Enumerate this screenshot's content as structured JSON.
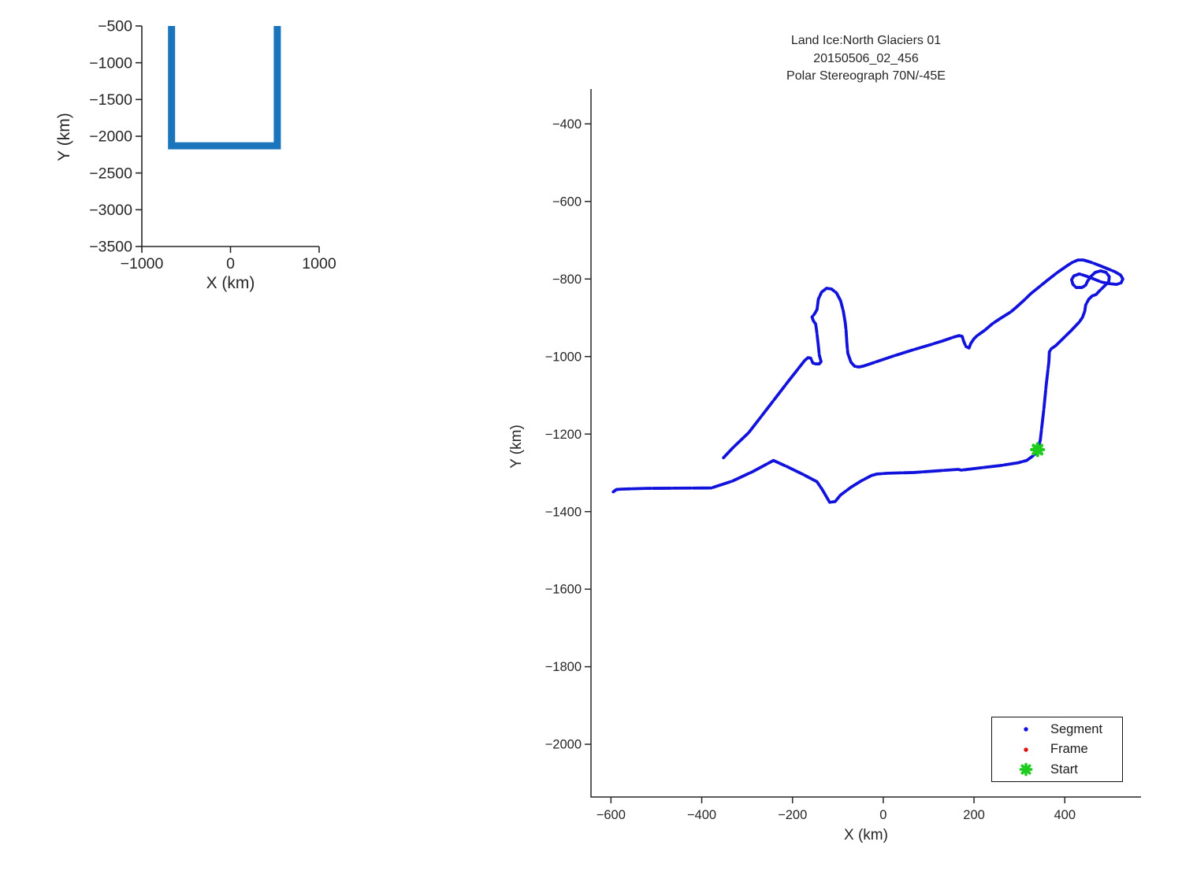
{
  "figure": {
    "background": "#ffffff",
    "kind": "flight-track-figure"
  },
  "colors": {
    "segment_blue": "#1212dd",
    "frame_red": "#dd1111",
    "start_green": "#1ecb1e",
    "overview_blue": "#1b75bc",
    "axis": "#262626",
    "text": "#262626",
    "background": "#ffffff"
  },
  "chart_data": [
    {
      "id": "overview",
      "type": "line",
      "title": "",
      "xlabel": "X (km)",
      "ylabel": "Y (km)",
      "xlim": [
        -1000,
        1000
      ],
      "ylim": [
        -3500,
        -500
      ],
      "xticks": [
        -1000,
        0,
        1000
      ],
      "yticks": [
        -500,
        -1000,
        -1500,
        -2000,
        -2500,
        -3000,
        -3500
      ],
      "grid": false,
      "legend": null,
      "series": [
        {
          "name": "full-mission-track",
          "color": "overview_blue",
          "points": [
            [
              -665,
              -440
            ],
            [
              -665,
              -2130
            ],
            [
              528,
              -2130
            ],
            [
              528,
              -440
            ]
          ]
        }
      ]
    },
    {
      "id": "track",
      "type": "line",
      "title_lines": [
        "Land Ice:North Glaciers 01",
        "20150506_02_456",
        "Polar Stereograph 70N/-45E"
      ],
      "xlabel": "X (km)",
      "ylabel": "Y (km)",
      "xlim": [
        -644,
        568
      ],
      "ylim": [
        -2136,
        -310
      ],
      "xticks": [
        -600,
        -400,
        -200,
        0,
        200,
        400
      ],
      "yticks": [
        -400,
        -600,
        -800,
        -1000,
        -1200,
        -1400,
        -1600,
        -1800,
        -2000
      ],
      "grid": false,
      "legend": {
        "position": "lower-right",
        "items": [
          {
            "label": "Segment",
            "marker": "dot",
            "color": "segment_blue"
          },
          {
            "label": "Frame",
            "marker": "dot",
            "color": "frame_red"
          },
          {
            "label": "Start",
            "marker": "asterisk",
            "color": "start_green"
          }
        ]
      },
      "start_point": [
        340,
        -1240
      ],
      "series": [
        {
          "name": "segment-track",
          "color": "segment_blue",
          "points": [
            [
              -595,
              -1349
            ],
            [
              -588,
              -1343
            ],
            [
              -578,
              -1342
            ],
            [
              -523,
              -1340
            ],
            [
              -379,
              -1339
            ],
            [
              -332,
              -1321
            ],
            [
              -288,
              -1297
            ],
            [
              -242,
              -1268
            ],
            [
              -210,
              -1285
            ],
            [
              -175,
              -1305
            ],
            [
              -146,
              -1323
            ],
            [
              -135,
              -1342
            ],
            [
              -123,
              -1366
            ],
            [
              -118,
              -1376
            ],
            [
              -106,
              -1374
            ],
            [
              -94,
              -1357
            ],
            [
              -71,
              -1337
            ],
            [
              -49,
              -1321
            ],
            [
              -26,
              -1307
            ],
            [
              -14,
              -1303
            ],
            [
              10,
              -1301
            ],
            [
              68,
              -1299
            ],
            [
              165,
              -1291
            ],
            [
              172,
              -1293
            ],
            [
              215,
              -1287
            ],
            [
              259,
              -1281
            ],
            [
              297,
              -1274
            ],
            [
              316,
              -1268
            ],
            [
              328,
              -1258
            ],
            [
              337,
              -1248
            ],
            [
              340,
              -1240
            ],
            [
              346,
              -1216
            ],
            [
              354,
              -1134
            ],
            [
              359,
              -1074
            ],
            [
              365,
              -1013
            ],
            [
              366,
              -988
            ],
            [
              370,
              -980
            ],
            [
              380,
              -972
            ],
            [
              401,
              -948
            ],
            [
              415,
              -932
            ],
            [
              432,
              -911
            ],
            [
              439,
              -899
            ],
            [
              444,
              -883
            ],
            [
              446,
              -867
            ],
            [
              453,
              -852
            ],
            [
              460,
              -844
            ],
            [
              469,
              -840
            ],
            [
              477,
              -830
            ],
            [
              484,
              -822
            ],
            [
              491,
              -814
            ],
            [
              497,
              -806
            ],
            [
              498,
              -794
            ],
            [
              491,
              -783
            ],
            [
              479,
              -779
            ],
            [
              467,
              -783
            ],
            [
              457,
              -794
            ],
            [
              450,
              -806
            ],
            [
              446,
              -816
            ],
            [
              438,
              -822
            ],
            [
              425,
              -822
            ],
            [
              418,
              -814
            ],
            [
              415,
              -802
            ],
            [
              420,
              -792
            ],
            [
              432,
              -787
            ],
            [
              446,
              -792
            ],
            [
              464,
              -800
            ],
            [
              481,
              -808
            ],
            [
              498,
              -812
            ],
            [
              514,
              -814
            ],
            [
              524,
              -810
            ],
            [
              528,
              -800
            ],
            [
              523,
              -790
            ],
            [
              510,
              -781
            ],
            [
              493,
              -773
            ],
            [
              476,
              -765
            ],
            [
              458,
              -757
            ],
            [
              441,
              -751
            ],
            [
              429,
              -751
            ],
            [
              417,
              -757
            ],
            [
              406,
              -765
            ],
            [
              384,
              -783
            ],
            [
              363,
              -802
            ],
            [
              342,
              -822
            ],
            [
              325,
              -838
            ],
            [
              311,
              -854
            ],
            [
              293,
              -873
            ],
            [
              281,
              -885
            ],
            [
              259,
              -901
            ],
            [
              241,
              -915
            ],
            [
              224,
              -932
            ],
            [
              207,
              -946
            ],
            [
              200,
              -954
            ],
            [
              193,
              -966
            ],
            [
              189,
              -978
            ],
            [
              182,
              -974
            ],
            [
              177,
              -960
            ],
            [
              174,
              -948
            ],
            [
              167,
              -946
            ],
            [
              155,
              -950
            ],
            [
              130,
              -960
            ],
            [
              108,
              -968
            ],
            [
              68,
              -982
            ],
            [
              24,
              -998
            ],
            [
              -19,
              -1015
            ],
            [
              -45,
              -1025
            ],
            [
              -54,
              -1027
            ],
            [
              -63,
              -1025
            ],
            [
              -71,
              -1015
            ],
            [
              -78,
              -992
            ],
            [
              -80,
              -968
            ],
            [
              -82,
              -932
            ],
            [
              -84,
              -911
            ],
            [
              -88,
              -883
            ],
            [
              -94,
              -856
            ],
            [
              -103,
              -836
            ],
            [
              -114,
              -826
            ],
            [
              -125,
              -824
            ],
            [
              -136,
              -834
            ],
            [
              -143,
              -852
            ],
            [
              -146,
              -879
            ],
            [
              -152,
              -891
            ],
            [
              -157,
              -898
            ],
            [
              -154,
              -908
            ],
            [
              -149,
              -916
            ],
            [
              -147,
              -932
            ],
            [
              -145,
              -952
            ],
            [
              -143,
              -972
            ],
            [
              -141,
              -996
            ],
            [
              -137,
              -1013
            ],
            [
              -141,
              -1019
            ],
            [
              -149,
              -1019
            ],
            [
              -155,
              -1017
            ],
            [
              -160,
              -1004
            ],
            [
              -166,
              -1003
            ],
            [
              -173,
              -1010
            ],
            [
              -210,
              -1065
            ],
            [
              -254,
              -1132
            ],
            [
              -297,
              -1197
            ],
            [
              -332,
              -1236
            ],
            [
              -352,
              -1261
            ]
          ]
        }
      ]
    }
  ]
}
